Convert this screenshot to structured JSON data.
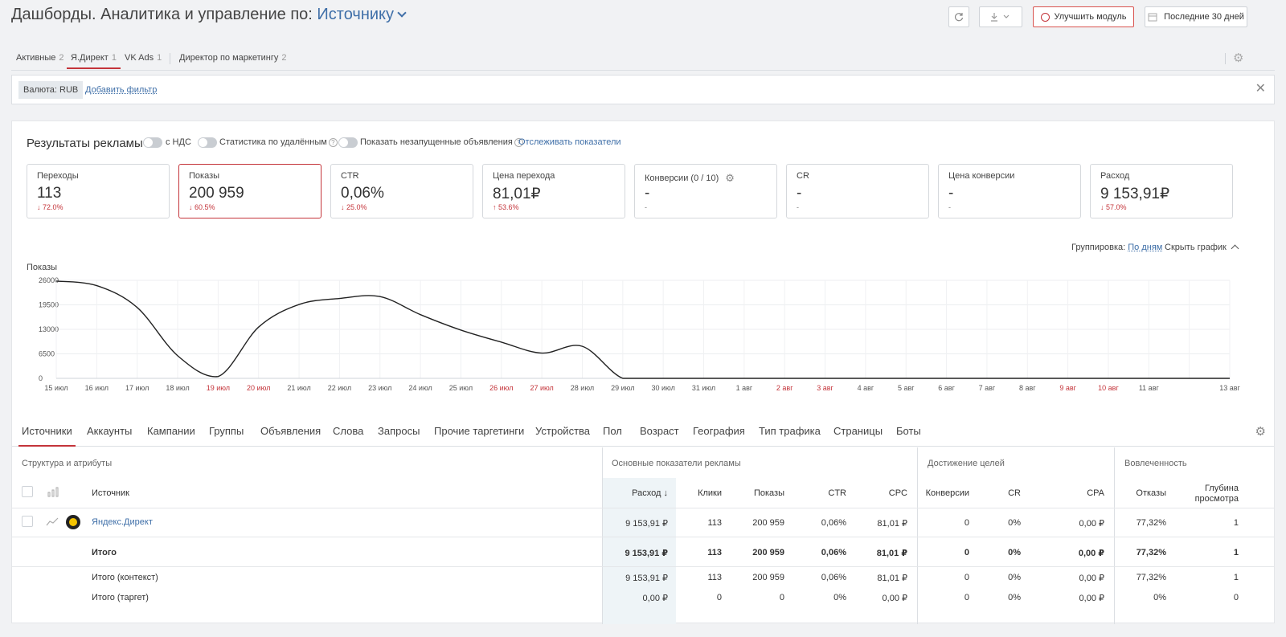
{
  "header": {
    "title_prefix": "Дашборды. Аналитика и управление по:",
    "title_source": "Источнику",
    "improve_label": "Улучшить модуль",
    "period_label": "Последние 30 дней"
  },
  "top_tabs": [
    {
      "label": "Активные",
      "count": "2"
    },
    {
      "label": "Я.Директ",
      "count": "1"
    },
    {
      "label": "VK Ads",
      "count": "1"
    },
    {
      "label": "Директор по маркетингу",
      "count": "2"
    }
  ],
  "filter": {
    "chip": "Валюта: RUB",
    "add_label": "Добавить фильтр"
  },
  "results": {
    "title": "Результаты рекламы",
    "toggle_vat": "с НДС",
    "toggle_deleted": "Статистика по удалённым",
    "toggle_unlaunched": "Показать незапущенные объявления",
    "track_link": "Отслеживать показатели"
  },
  "kpis": [
    {
      "label": "Переходы",
      "value": "113",
      "delta": "↓ 72.0%"
    },
    {
      "label": "Показы",
      "value": "200 959",
      "delta": "↓ 60.5%"
    },
    {
      "label": "CTR",
      "value": "0,06%",
      "delta": "↓ 25.0%"
    },
    {
      "label": "Цена перехода",
      "value": "81,01₽",
      "delta": "↑ 53.6%"
    },
    {
      "label": "Конверсии (0 / 10)",
      "value": "-",
      "delta": "-"
    },
    {
      "label": "CR",
      "value": "-",
      "delta": "-"
    },
    {
      "label": "Цена конверсии",
      "value": "-",
      "delta": "-"
    },
    {
      "label": "Расход",
      "value": "9 153,91₽",
      "delta": "↓ 57.0%"
    }
  ],
  "chart_controls": {
    "grouping_label": "Группировка:",
    "grouping_value": "По дням",
    "hide_label": "Скрыть график"
  },
  "chart_data": {
    "type": "line",
    "ylabel": "Показы",
    "ylim": [
      0,
      26000
    ],
    "yticks": [
      "26000",
      "19500",
      "13000",
      "6500",
      "0"
    ],
    "grid": true,
    "x": [
      "15 июл",
      "16 июл",
      "17 июл",
      "18 июл",
      "19 июл",
      "20 июл",
      "21 июл",
      "22 июл",
      "23 июл",
      "24 июл",
      "25 июл",
      "26 июл",
      "27 июл",
      "28 июл",
      "29 июл",
      "30 июл",
      "31 июл",
      "1 авг",
      "2 авг",
      "3 авг",
      "4 авг",
      "5 авг",
      "6 авг",
      "7 авг",
      "8 авг",
      "9 авг",
      "10 авг",
      "11 авг",
      "13 авг"
    ],
    "weekend_flags": [
      false,
      false,
      false,
      false,
      true,
      true,
      false,
      false,
      false,
      false,
      false,
      true,
      true,
      false,
      false,
      false,
      false,
      false,
      true,
      true,
      false,
      false,
      false,
      false,
      false,
      true,
      true,
      false,
      false
    ],
    "series": [
      {
        "values": [
          25800,
          24600,
          18800,
          6000,
          500,
          13600,
          19600,
          21200,
          21700,
          16900,
          12800,
          9600,
          6700,
          8500,
          0,
          0,
          0,
          0,
          0,
          0,
          0,
          0,
          0,
          0,
          0,
          0,
          0,
          0,
          0
        ]
      }
    ],
    "line_color": "#222222",
    "weekend_color": "#c4343a"
  },
  "section_tabs": [
    "Источники",
    "Аккаунты",
    "Кампании",
    "Группы",
    "Объявления",
    "Слова",
    "Запросы",
    "Прочие таргетинги",
    "Устройства",
    "Пол",
    "Возраст",
    "География",
    "Тип трафика",
    "Страницы",
    "Боты"
  ],
  "table": {
    "group_headers": [
      "Структура и атрибуты",
      "Основные показатели рекламы",
      "Достижение целей",
      "Вовлеченность"
    ],
    "columns": {
      "source": "Источник",
      "spend": "Расход ↓",
      "clicks": "Клики",
      "impressions": "Показы",
      "ctr": "CTR",
      "cpc": "CPC",
      "conversions": "Конверсии",
      "cr": "CR",
      "cpa": "CPA",
      "bounces": "Отказы",
      "depth_1": "Глубина",
      "depth_2": "просмотра"
    },
    "rows": [
      {
        "name": "Яндекс.Директ",
        "spend": "9 153,91 ₽",
        "clicks": "113",
        "impressions": "200 959",
        "ctr": "0,06%",
        "cpc": "81,01 ₽",
        "conversions": "0",
        "cr": "0%",
        "cpa": "0,00 ₽",
        "bounces": "77,32%",
        "depth": "1"
      },
      {
        "name": "Итого",
        "spend": "9 153,91 ₽",
        "clicks": "113",
        "impressions": "200 959",
        "ctr": "0,06%",
        "cpc": "81,01 ₽",
        "conversions": "0",
        "cr": "0%",
        "cpa": "0,00 ₽",
        "bounces": "77,32%",
        "depth": "1"
      },
      {
        "name": "Итого (контекст)",
        "spend": "9 153,91 ₽",
        "clicks": "113",
        "impressions": "200 959",
        "ctr": "0,06%",
        "cpc": "81,01 ₽",
        "conversions": "0",
        "cr": "0%",
        "cpa": "0,00 ₽",
        "bounces": "77,32%",
        "depth": "1"
      },
      {
        "name": "Итого (таргет)",
        "spend": "0,00 ₽",
        "clicks": "0",
        "impressions": "0",
        "ctr": "0%",
        "cpc": "0,00 ₽",
        "conversions": "0",
        "cr": "0%",
        "cpa": "0,00 ₽",
        "bounces": "0%",
        "depth": "0"
      }
    ]
  }
}
